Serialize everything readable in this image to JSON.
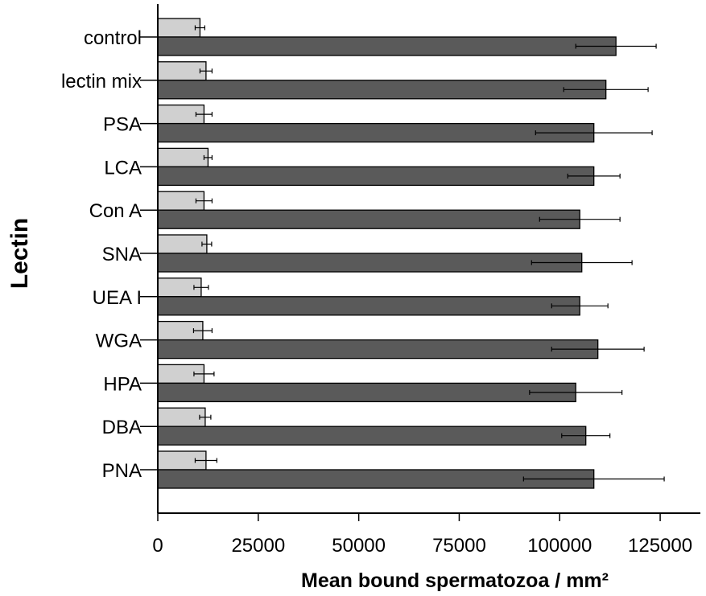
{
  "chart_data": {
    "type": "bar",
    "orientation": "horizontal",
    "categories": [
      "control",
      "lectin mix",
      "PSA",
      "LCA",
      "Con A",
      "SNA",
      "UEA I",
      "WGA",
      "HPA",
      "DBA",
      "PNA"
    ],
    "series": [
      {
        "color": "#d0d0d0",
        "values": [
          10500,
          12000,
          11500,
          12500,
          11500,
          12200,
          10800,
          11200,
          11500,
          11800,
          12000
        ],
        "errors": [
          1200,
          1500,
          2000,
          1000,
          2000,
          1200,
          1800,
          2300,
          2500,
          1400,
          2700
        ]
      },
      {
        "color": "#5a5a5a",
        "values": [
          114000,
          111500,
          108500,
          108500,
          105000,
          105500,
          105000,
          109500,
          104000,
          106500,
          108500
        ],
        "errors": [
          10000,
          10500,
          14500,
          6500,
          10000,
          12500,
          7000,
          11500,
          11500,
          6000,
          17500
        ]
      }
    ],
    "xlabel": "Mean bound spermatozoa / mm²",
    "ylabel": "Lectin",
    "xlim": [
      0,
      135000
    ],
    "xticks": [
      0,
      25000,
      50000,
      75000,
      100000,
      125000
    ],
    "xtick_labels": [
      "0",
      "25000",
      "50000",
      "75000",
      "100000",
      "125000"
    ],
    "grid": false,
    "legend": "none"
  }
}
